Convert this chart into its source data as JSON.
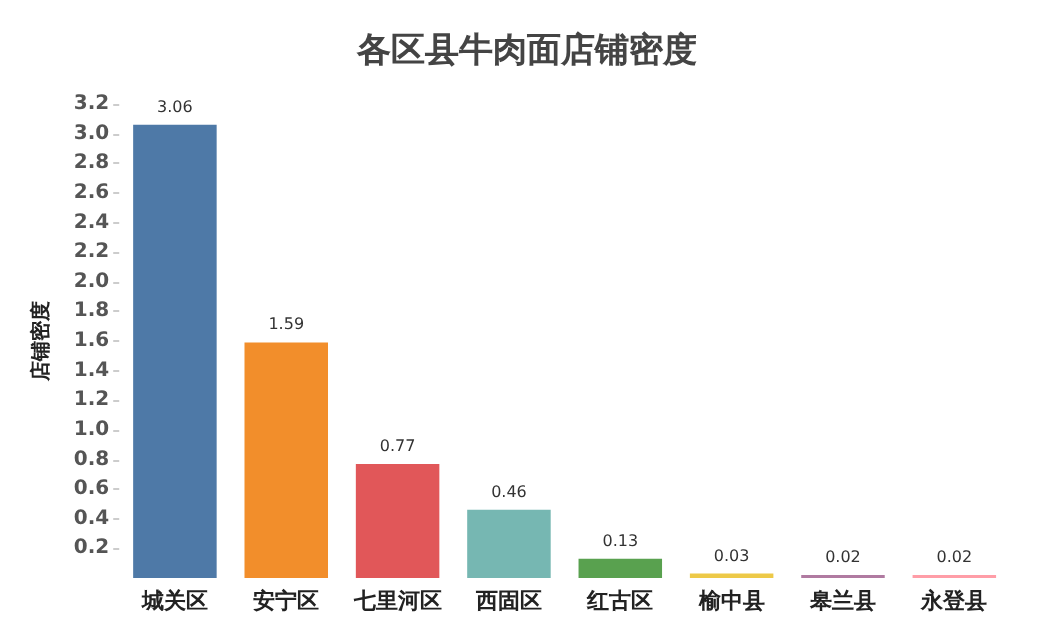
{
  "chart_data": {
    "type": "bar",
    "title": "各区县牛肉面店铺密度",
    "ylabel": "店铺密度",
    "categories": [
      "城关区",
      "安宁区",
      "七里河区",
      "西固区",
      "红古区",
      "榆中县",
      "皋兰县",
      "永登县"
    ],
    "values": [
      3.06,
      1.59,
      0.77,
      0.46,
      0.13,
      0.03,
      0.02,
      0.02
    ],
    "colors": [
      "#4e79a7",
      "#f28e2b",
      "#e15759",
      "#76b7b2",
      "#59a14f",
      "#edc948",
      "#b07aa1",
      "#ff9da7"
    ],
    "ylim": [
      0,
      3.2
    ],
    "yticks": [
      0.2,
      0.4,
      0.6,
      0.8,
      {
        "value": 1,
        "label": "1.0"
      },
      1.2,
      1.4,
      1.6,
      1.8,
      {
        "value": 2,
        "label": "2.0"
      },
      2.2,
      2.4,
      2.6,
      2.8,
      {
        "value": 3,
        "label": "3.0"
      },
      3.2
    ],
    "data_labels": true
  }
}
